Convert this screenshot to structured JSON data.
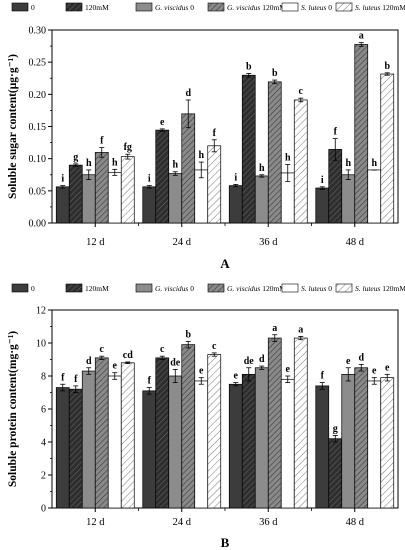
{
  "colors": {
    "control": "#3c3c3c",
    "salt": "#2e2e2e",
    "gv": "#8c8c8c",
    "gv_salt": "#707070",
    "sl": "#ffffff",
    "sl_salt": "#ffffff",
    "axis": "#000000"
  },
  "legend": [
    {
      "key": "control",
      "label": "0",
      "italic_prefix": ""
    },
    {
      "key": "salt",
      "label": "120mM",
      "italic_prefix": ""
    },
    {
      "key": "gv",
      "label": " 0",
      "italic_prefix": "G. viscidus"
    },
    {
      "key": "gv_salt",
      "label": " 120mM",
      "italic_prefix": "G. viscidus"
    },
    {
      "key": "sl",
      "label": " 0",
      "italic_prefix": "S. luteus"
    },
    {
      "key": "sl_salt",
      "label": " 120mM",
      "italic_prefix": "S. luteus"
    }
  ],
  "chart_data": [
    {
      "panel_label": "A",
      "type": "bar",
      "ylabel": "Soluble sugar content(μg·g⁻¹)",
      "ylim": [
        0,
        0.32
      ],
      "yticks": [
        "0.00",
        "0.05",
        "0.10",
        "0.15",
        "0.20",
        "0.25",
        "0.30"
      ],
      "categories": [
        "12  d",
        "24  d",
        "36  d",
        "48  d"
      ],
      "series": [
        {
          "key": "control",
          "values": [
            0.06,
            0.06,
            0.062,
            0.058
          ],
          "errors": [
            0.002,
            0.002,
            0.002,
            0.002
          ],
          "letters": [
            "i",
            "i",
            "i",
            "i"
          ]
        },
        {
          "key": "salt",
          "values": [
            0.096,
            0.154,
            0.245,
            0.122
          ],
          "errors": [
            0.002,
            0.002,
            0.003,
            0.018
          ],
          "letters": [
            "g",
            "e",
            "b",
            "f"
          ]
        },
        {
          "key": "gv",
          "values": [
            0.08,
            0.082,
            0.078,
            0.08
          ],
          "errors": [
            0.008,
            0.003,
            0.002,
            0.008
          ],
          "letters": [
            "h",
            "h",
            "h",
            "h"
          ]
        },
        {
          "key": "gv_salt",
          "values": [
            0.117,
            0.181,
            0.234,
            0.296
          ],
          "errors": [
            0.008,
            0.023,
            0.003,
            0.003
          ],
          "letters": [
            "f",
            "d",
            "b",
            "a"
          ]
        },
        {
          "key": "sl",
          "values": [
            0.084,
            0.088,
            0.083,
            0.088
          ],
          "errors": [
            0.005,
            0.013,
            0.014,
            0.0
          ],
          "letters": [
            "h",
            "h",
            "h",
            "h"
          ]
        },
        {
          "key": "sl_salt",
          "values": [
            0.11,
            0.128,
            0.204,
            0.247
          ],
          "errors": [
            0.004,
            0.01,
            0.003,
            0.002
          ],
          "letters": [
            "fg",
            "f",
            "c",
            "b"
          ]
        }
      ]
    },
    {
      "panel_label": "B",
      "type": "bar",
      "ylabel": "Soluble protein content(mg·g⁻¹)",
      "ylim": [
        0,
        12
      ],
      "yticks": [
        "0",
        "2",
        "4",
        "6",
        "8",
        "10",
        "12"
      ],
      "categories": [
        "12  d",
        "24  d",
        "36  d",
        "48  d"
      ],
      "series": [
        {
          "key": "control",
          "values": [
            7.3,
            7.1,
            7.5,
            7.4
          ],
          "errors": [
            0.2,
            0.2,
            0.1,
            0.2
          ],
          "letters": [
            "f",
            "f",
            "e",
            "f"
          ]
        },
        {
          "key": "salt",
          "values": [
            7.2,
            9.1,
            8.1,
            4.2
          ],
          "errors": [
            0.2,
            0.1,
            0.4,
            0.2
          ],
          "letters": [
            "f",
            "c",
            "de",
            "g"
          ]
        },
        {
          "key": "gv",
          "values": [
            8.3,
            8.0,
            8.5,
            8.1
          ],
          "errors": [
            0.2,
            0.4,
            0.1,
            0.4
          ],
          "letters": [
            "d",
            "de",
            "d",
            "e"
          ]
        },
        {
          "key": "gv_salt",
          "values": [
            9.1,
            9.9,
            10.3,
            8.5
          ],
          "errors": [
            0.1,
            0.2,
            0.2,
            0.2
          ],
          "letters": [
            "c",
            "b",
            "a",
            "d"
          ]
        },
        {
          "key": "sl",
          "values": [
            8.0,
            7.7,
            7.8,
            7.7
          ],
          "errors": [
            0.2,
            0.2,
            0.2,
            0.2
          ],
          "letters": [
            "e",
            "e",
            "e",
            "e"
          ]
        },
        {
          "key": "sl_salt",
          "values": [
            8.8,
            9.3,
            10.3,
            7.9
          ],
          "errors": [
            0.05,
            0.1,
            0.1,
            0.2
          ],
          "letters": [
            "cd",
            "c",
            "a",
            "e"
          ]
        }
      ]
    }
  ]
}
